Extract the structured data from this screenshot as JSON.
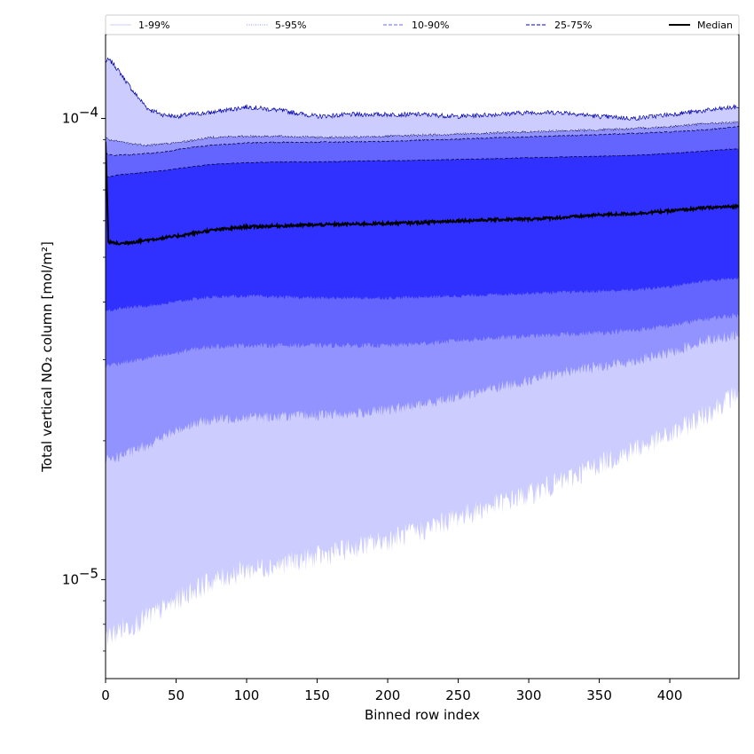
{
  "chart_data": {
    "type": "area",
    "xlabel": "Binned row index",
    "ylabel": "Total vertical NO₂ column [mol/m²]",
    "xlim": [
      0,
      449
    ],
    "ylim": [
      6.1e-06,
      0.000152
    ],
    "yscale": "log",
    "grid": false,
    "legend_placement": "top (above plot, single row)",
    "x_ticks": [
      0,
      50,
      100,
      150,
      200,
      250,
      300,
      350,
      400
    ],
    "y_ticks": [
      {
        "value": 1e-05,
        "mantissa": "10",
        "exponent": "−5"
      },
      {
        "value": 0.0001,
        "mantissa": "10",
        "exponent": "−4"
      }
    ],
    "legend": [
      {
        "label": "1-99%",
        "color": "#ccccff",
        "dash": "solid",
        "width": 1
      },
      {
        "label": "5-95%",
        "color": "#9393ff",
        "dash": "dotted",
        "width": 1
      },
      {
        "label": "10-90%",
        "color": "#6464ff",
        "dash": "dashed",
        "width": 1
      },
      {
        "label": "25-75%",
        "color": "#3030ff",
        "dash": "dashed",
        "width": 1.2
      },
      {
        "label": "Median",
        "color": "#000000",
        "dash": "solid",
        "width": 2
      }
    ],
    "x": [
      0,
      2,
      5,
      10,
      20,
      30,
      40,
      50,
      60,
      75,
      100,
      125,
      150,
      175,
      200,
      225,
      250,
      275,
      300,
      325,
      350,
      375,
      400,
      425,
      449
    ],
    "series": [
      {
        "name": "1-99%",
        "color": "#ccccff",
        "lower": [
          7.8e-06,
          7.5e-06,
          7.6e-06,
          7.8e-06,
          8e-06,
          8.3e-06,
          8.6e-06,
          9e-06,
          9.4e-06,
          9.9e-06,
          1.05e-05,
          1.08e-05,
          1.12e-05,
          1.17e-05,
          1.22e-05,
          1.28e-05,
          1.37e-05,
          1.45e-05,
          1.53e-05,
          1.64e-05,
          1.78e-05,
          1.92e-05,
          2.05e-05,
          2.28e-05,
          2.55e-05
        ],
        "upper": [
          0.000133,
          0.000134,
          0.000132,
          0.000126,
          0.000114,
          0.000105,
          0.000102,
          0.000101,
          0.000102,
          0.000103,
          0.000106,
          0.000104,
          0.000101,
          0.000102,
          0.000102,
          0.000102,
          0.000101,
          0.000102,
          0.000103,
          0.000103,
          0.000101,
          0.0001,
          0.000102,
          0.000104,
          0.000106
        ]
      },
      {
        "name": "5-95%",
        "color": "#9393ff",
        "lower": [
          1.82e-05,
          1.82e-05,
          1.83e-05,
          1.85e-05,
          1.9e-05,
          1.96e-05,
          2.03e-05,
          2.1e-05,
          2.17e-05,
          2.22e-05,
          2.25e-05,
          2.26e-05,
          2.27e-05,
          2.29e-05,
          2.33e-05,
          2.4e-05,
          2.5e-05,
          2.6e-05,
          2.7e-05,
          2.82e-05,
          2.9e-05,
          2.98e-05,
          3.1e-05,
          3.3e-05,
          3.4e-05
        ],
        "upper": [
          9.1e-05,
          9e-05,
          8.95e-05,
          8.9e-05,
          8.8e-05,
          8.75e-05,
          8.8e-05,
          8.85e-05,
          8.95e-05,
          9.1e-05,
          9.15e-05,
          9.15e-05,
          9.1e-05,
          9.1e-05,
          9.15e-05,
          9.2e-05,
          9.25e-05,
          9.3e-05,
          9.35e-05,
          9.4e-05,
          9.45e-05,
          9.5e-05,
          9.6e-05,
          9.75e-05,
          9.8e-05
        ]
      },
      {
        "name": "10-90%",
        "color": "#6464ff",
        "lower": [
          2.9e-05,
          2.92e-05,
          2.93e-05,
          2.95e-05,
          2.98e-05,
          3.02e-05,
          3.06e-05,
          3.1e-05,
          3.15e-05,
          3.2e-05,
          3.22e-05,
          3.22e-05,
          3.22e-05,
          3.22e-05,
          3.22e-05,
          3.25e-05,
          3.3e-05,
          3.34e-05,
          3.37e-05,
          3.4e-05,
          3.43e-05,
          3.47e-05,
          3.55e-05,
          3.67e-05,
          3.75e-05
        ],
        "upper": [
          8.4e-05,
          8.35e-05,
          8.32e-05,
          8.33e-05,
          8.35e-05,
          8.4e-05,
          8.45e-05,
          8.55e-05,
          8.65e-05,
          8.75e-05,
          8.85e-05,
          8.88e-05,
          8.88e-05,
          8.9e-05,
          8.92e-05,
          8.98e-05,
          9.02e-05,
          9.08e-05,
          9.12e-05,
          9.18e-05,
          9.22e-05,
          9.28e-05,
          9.35e-05,
          9.45e-05,
          9.6e-05
        ]
      },
      {
        "name": "25-75%",
        "color": "#3030ff",
        "lower": [
          3.82e-05,
          3.83e-05,
          3.85e-05,
          3.88e-05,
          3.9e-05,
          3.93e-05,
          3.96e-05,
          4e-05,
          4.05e-05,
          4.1e-05,
          4.12e-05,
          4.1e-05,
          4.08e-05,
          4.08e-05,
          4.08e-05,
          4.1e-05,
          4.12e-05,
          4.15e-05,
          4.18e-05,
          4.2e-05,
          4.22e-05,
          4.25e-05,
          4.32e-05,
          4.45e-05,
          4.5e-05
        ],
        "upper": [
          7.5e-05,
          7.48e-05,
          7.5e-05,
          7.55e-05,
          7.6e-05,
          7.65e-05,
          7.7e-05,
          7.78e-05,
          7.85e-05,
          7.95e-05,
          8.02e-05,
          8.05e-05,
          8.05e-05,
          8.08e-05,
          8.1e-05,
          8.12e-05,
          8.15e-05,
          8.18e-05,
          8.22e-05,
          8.25e-05,
          8.28e-05,
          8.32e-05,
          8.4e-05,
          8.5e-05,
          8.6e-05
        ]
      },
      {
        "name": "Median",
        "color": "#000000",
        "values": [
          8.9e-05,
          5.4e-05,
          5.38e-05,
          5.35e-05,
          5.4e-05,
          5.45e-05,
          5.5e-05,
          5.55e-05,
          5.62e-05,
          5.72e-05,
          5.82e-05,
          5.85e-05,
          5.88e-05,
          5.9e-05,
          5.92e-05,
          5.95e-05,
          6e-05,
          6.03e-05,
          6.05e-05,
          6.1e-05,
          6.18e-05,
          6.22e-05,
          6.3e-05,
          6.4e-05,
          6.45e-05
        ]
      }
    ]
  }
}
